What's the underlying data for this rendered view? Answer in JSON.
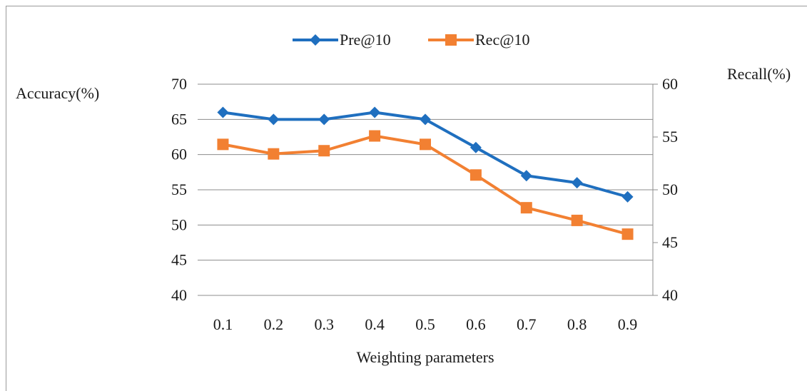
{
  "chart_data": {
    "type": "line",
    "categories": [
      "0.1",
      "0.2",
      "0.3",
      "0.4",
      "0.5",
      "0.6",
      "0.7",
      "0.8",
      "0.9"
    ],
    "xlabel": "Weighting parameters",
    "ylabel_left": "Accuracy(%)",
    "ylabel_right": "Recall(%)",
    "ylim_left": [
      40,
      70
    ],
    "yticks_left": [
      "40",
      "45",
      "50",
      "55",
      "60",
      "65",
      "70"
    ],
    "ylim_right": [
      40,
      60
    ],
    "yticks_right": [
      "40",
      "45",
      "50",
      "55",
      "60"
    ],
    "grid": true,
    "legend_position": "top",
    "series": [
      {
        "name": "Pre@10",
        "axis": "left",
        "color": "#1f6fbf",
        "marker": "diamond",
        "values": [
          66,
          65,
          65,
          66,
          65,
          61,
          57,
          56,
          54
        ]
      },
      {
        "name": "Rec@10",
        "axis": "right",
        "color": "#f28032",
        "marker": "square",
        "values": [
          54.3,
          53.4,
          53.7,
          55.1,
          54.3,
          51.4,
          48.3,
          47.1,
          45.8
        ]
      }
    ]
  }
}
